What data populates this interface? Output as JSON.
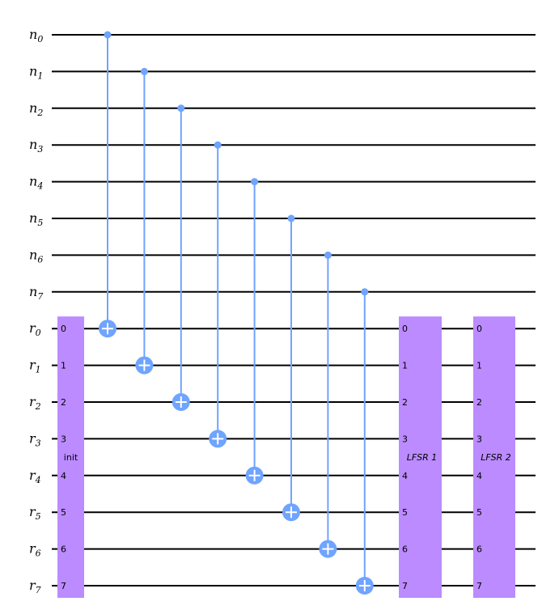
{
  "colors": {
    "background": "#ffffff",
    "wire": "#000000",
    "cnot": "#6fa4ff",
    "block": "#bb8bff"
  },
  "registers": {
    "n": {
      "prefix": "n",
      "subscripts": [
        "0",
        "1",
        "2",
        "3",
        "4",
        "5",
        "6",
        "7"
      ]
    },
    "r": {
      "prefix": "r",
      "subscripts": [
        "0",
        "1",
        "2",
        "3",
        "4",
        "5",
        "6",
        "7"
      ]
    }
  },
  "blocks": [
    {
      "id": "init",
      "label": "init",
      "italic": false,
      "pins": [
        "0",
        "1",
        "2",
        "3",
        "4",
        "5",
        "6",
        "7"
      ]
    },
    {
      "id": "lfsr1",
      "label": "LFSR 1",
      "italic": true,
      "pins": [
        "0",
        "1",
        "2",
        "3",
        "4",
        "5",
        "6",
        "7"
      ]
    },
    {
      "id": "lfsr2",
      "label": "LFSR 2",
      "italic": true,
      "pins": [
        "0",
        "1",
        "2",
        "3",
        "4",
        "5",
        "6",
        "7"
      ]
    }
  ],
  "cnots": [
    {
      "control": "n0",
      "target": "r0"
    },
    {
      "control": "n1",
      "target": "r1"
    },
    {
      "control": "n2",
      "target": "r2"
    },
    {
      "control": "n3",
      "target": "r3"
    },
    {
      "control": "n4",
      "target": "r4"
    },
    {
      "control": "n5",
      "target": "r5"
    },
    {
      "control": "n6",
      "target": "r6"
    },
    {
      "control": "n7",
      "target": "r7"
    }
  ]
}
